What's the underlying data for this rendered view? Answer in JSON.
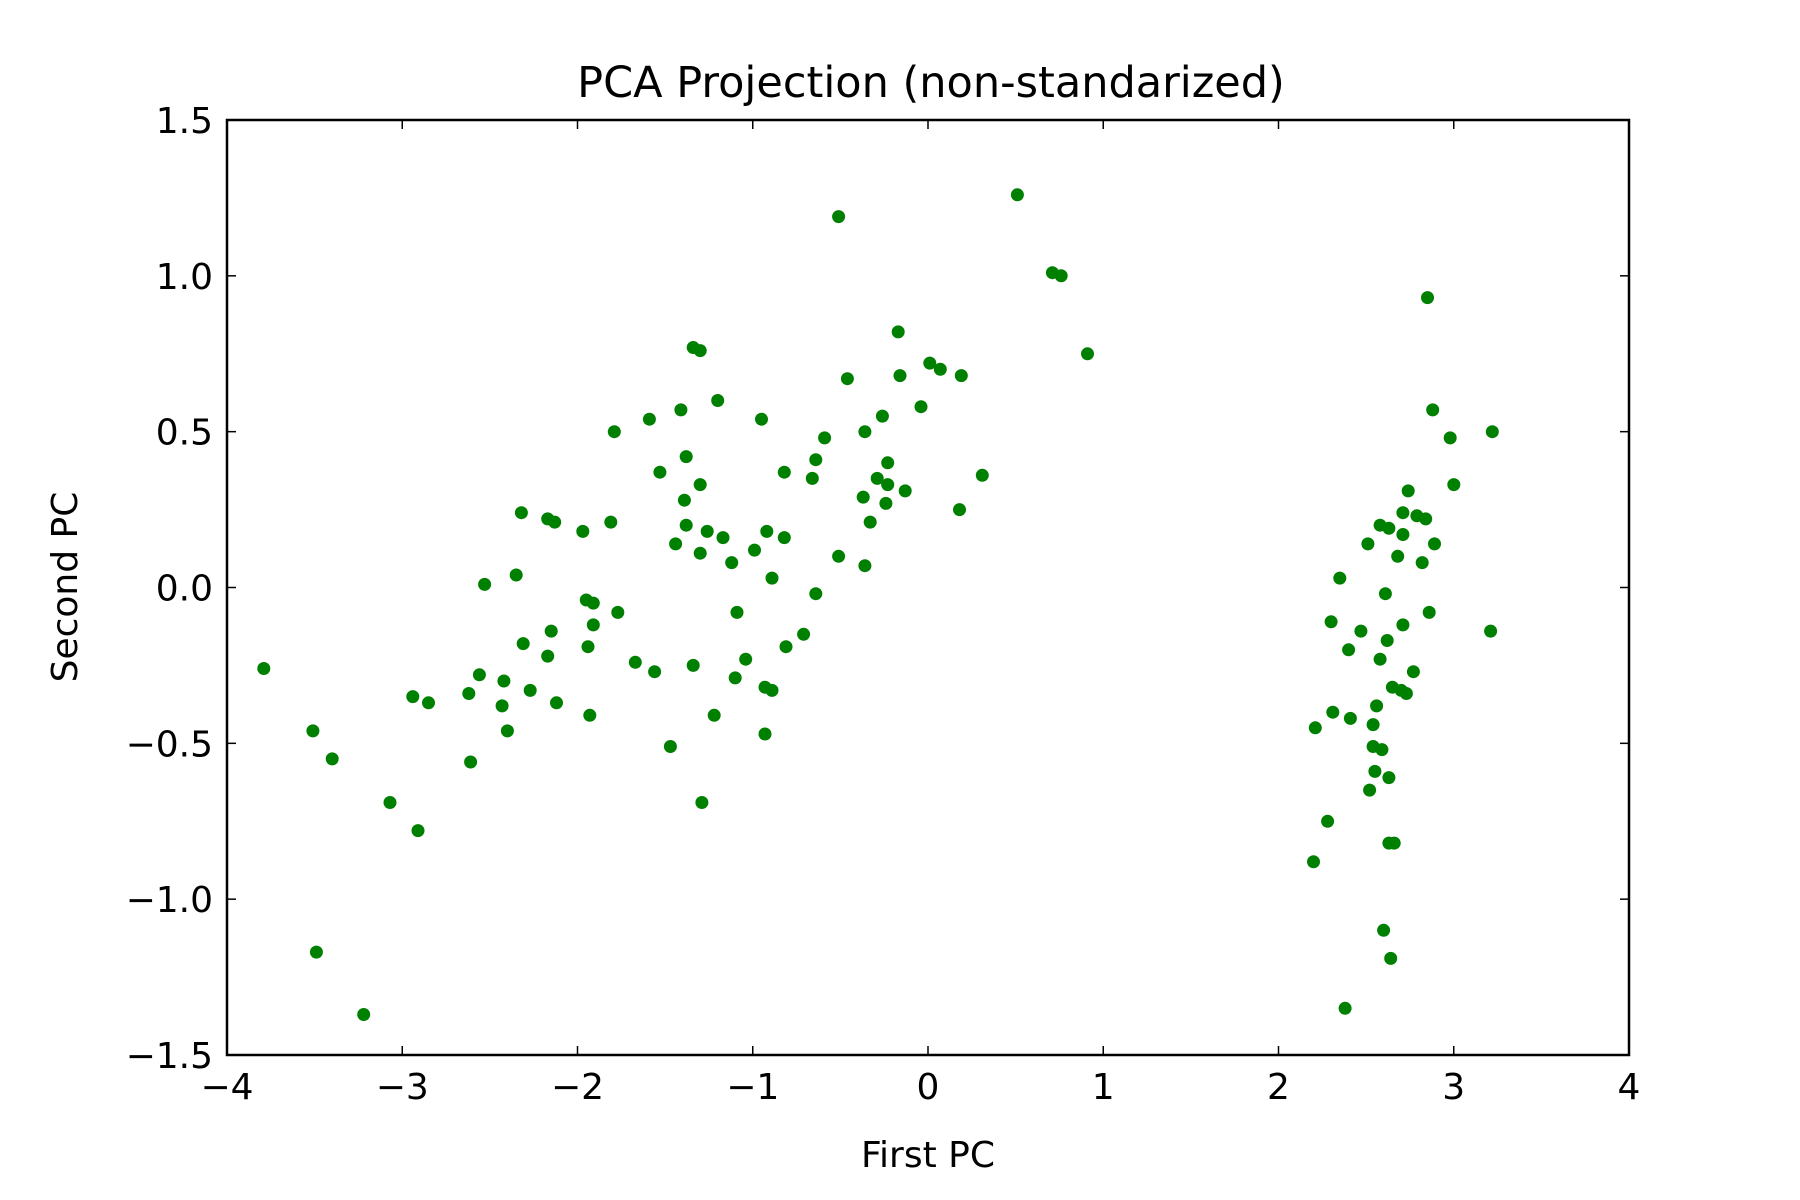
{
  "chart_data": {
    "type": "scatter",
    "title": "PCA Projection (non-standarized)",
    "xlabel": "First PC",
    "ylabel": "Second PC",
    "xlim": [
      -4,
      4
    ],
    "ylim": [
      -1.5,
      1.5
    ],
    "grid": false,
    "x_ticks": [
      -4,
      -3,
      -2,
      -1,
      0,
      1,
      2,
      3,
      4
    ],
    "x_tick_labels": [
      "−4",
      "−3",
      "−2",
      "−1",
      "0",
      "1",
      "2",
      "3",
      "4"
    ],
    "y_ticks": [
      -1.5,
      -1.0,
      -0.5,
      0.0,
      0.5,
      1.0,
      1.5
    ],
    "y_tick_labels": [
      "−1.5",
      "−1.0",
      "−0.5",
      "0.0",
      "0.5",
      "1.0",
      "1.5"
    ],
    "marker_color": "#008000",
    "series": [
      {
        "points": [
          [
            -3.79,
            -0.26
          ],
          [
            -3.51,
            -0.46
          ],
          [
            -3.49,
            -1.17
          ],
          [
            -3.4,
            -0.55
          ],
          [
            -3.22,
            -1.37
          ],
          [
            -3.07,
            -0.69
          ],
          [
            -2.94,
            -0.35
          ],
          [
            -2.91,
            -0.78
          ],
          [
            -2.85,
            -0.37
          ],
          [
            -2.62,
            -0.34
          ],
          [
            -2.61,
            -0.56
          ],
          [
            -2.56,
            -0.28
          ],
          [
            -2.53,
            0.01
          ],
          [
            -2.43,
            -0.38
          ],
          [
            -2.42,
            -0.3
          ],
          [
            -2.4,
            -0.46
          ],
          [
            -2.35,
            0.04
          ],
          [
            -2.32,
            0.24
          ],
          [
            -2.31,
            -0.18
          ],
          [
            -2.27,
            -0.33
          ],
          [
            -2.17,
            0.22
          ],
          [
            -2.17,
            -0.22
          ],
          [
            -2.15,
            -0.14
          ],
          [
            -2.13,
            0.21
          ],
          [
            -2.12,
            -0.37
          ],
          [
            -1.97,
            0.18
          ],
          [
            -1.95,
            -0.04
          ],
          [
            -1.94,
            -0.19
          ],
          [
            -1.93,
            -0.41
          ],
          [
            -1.91,
            -0.05
          ],
          [
            -1.91,
            -0.12
          ],
          [
            -1.81,
            0.21
          ],
          [
            -1.79,
            0.5
          ],
          [
            -1.77,
            -0.08
          ],
          [
            -1.67,
            -0.24
          ],
          [
            -1.59,
            0.54
          ],
          [
            -1.56,
            -0.27
          ],
          [
            -1.53,
            0.37
          ],
          [
            -1.47,
            -0.51
          ],
          [
            -1.44,
            0.14
          ],
          [
            -1.41,
            0.57
          ],
          [
            -1.39,
            0.28
          ],
          [
            -1.38,
            0.42
          ],
          [
            -1.38,
            0.2
          ],
          [
            -1.34,
            0.77
          ],
          [
            -1.34,
            -0.25
          ],
          [
            -1.3,
            0.76
          ],
          [
            -1.3,
            0.33
          ],
          [
            -1.3,
            0.11
          ],
          [
            -1.29,
            -0.69
          ],
          [
            -1.26,
            0.18
          ],
          [
            -1.22,
            -0.41
          ],
          [
            -1.2,
            0.6
          ],
          [
            -1.17,
            0.16
          ],
          [
            -1.12,
            0.08
          ],
          [
            -1.1,
            -0.29
          ],
          [
            -1.09,
            -0.08
          ],
          [
            -1.04,
            -0.23
          ],
          [
            -0.99,
            0.12
          ],
          [
            -0.95,
            0.54
          ],
          [
            -0.93,
            -0.32
          ],
          [
            -0.93,
            -0.47
          ],
          [
            -0.92,
            0.18
          ],
          [
            -0.89,
            0.03
          ],
          [
            -0.89,
            -0.33
          ],
          [
            -0.82,
            0.16
          ],
          [
            -0.82,
            0.37
          ],
          [
            -0.81,
            -0.19
          ],
          [
            -0.71,
            -0.15
          ],
          [
            -0.66,
            0.35
          ],
          [
            -0.64,
            0.41
          ],
          [
            -0.64,
            -0.02
          ],
          [
            -0.59,
            0.48
          ],
          [
            -0.51,
            1.19
          ],
          [
            -0.51,
            0.1
          ],
          [
            -0.46,
            0.67
          ],
          [
            -0.37,
            0.29
          ],
          [
            -0.36,
            0.5
          ],
          [
            -0.36,
            0.07
          ],
          [
            -0.33,
            0.21
          ],
          [
            -0.29,
            0.35
          ],
          [
            -0.26,
            0.55
          ],
          [
            -0.24,
            0.27
          ],
          [
            -0.23,
            0.4
          ],
          [
            -0.23,
            0.33
          ],
          [
            -0.17,
            0.82
          ],
          [
            -0.16,
            0.68
          ],
          [
            -0.13,
            0.31
          ],
          [
            -0.04,
            0.58
          ],
          [
            0.01,
            0.72
          ],
          [
            0.07,
            0.7
          ],
          [
            0.18,
            0.25
          ],
          [
            0.19,
            0.68
          ],
          [
            0.31,
            0.36
          ],
          [
            0.51,
            1.26
          ],
          [
            0.71,
            1.01
          ],
          [
            0.76,
            1.0
          ],
          [
            0.91,
            0.75
          ],
          [
            2.2,
            -0.88
          ],
          [
            2.21,
            -0.45
          ],
          [
            2.28,
            -0.75
          ],
          [
            2.3,
            -0.11
          ],
          [
            2.31,
            -0.4
          ],
          [
            2.35,
            0.03
          ],
          [
            2.38,
            -1.35
          ],
          [
            2.4,
            -0.2
          ],
          [
            2.41,
            -0.42
          ],
          [
            2.47,
            -0.14
          ],
          [
            2.51,
            0.14
          ],
          [
            2.52,
            -0.65
          ],
          [
            2.54,
            -0.51
          ],
          [
            2.54,
            -0.44
          ],
          [
            2.55,
            -0.59
          ],
          [
            2.56,
            -0.38
          ],
          [
            2.58,
            0.2
          ],
          [
            2.58,
            -0.23
          ],
          [
            2.59,
            -0.52
          ],
          [
            2.6,
            -1.1
          ],
          [
            2.61,
            -0.02
          ],
          [
            2.62,
            -0.17
          ],
          [
            2.63,
            0.19
          ],
          [
            2.63,
            -0.61
          ],
          [
            2.63,
            -0.82
          ],
          [
            2.64,
            -1.19
          ],
          [
            2.65,
            -0.32
          ],
          [
            2.66,
            -0.82
          ],
          [
            2.68,
            0.1
          ],
          [
            2.7,
            -0.33
          ],
          [
            2.71,
            0.17
          ],
          [
            2.71,
            -0.12
          ],
          [
            2.71,
            0.24
          ],
          [
            2.73,
            -0.34
          ],
          [
            2.74,
            0.31
          ],
          [
            2.77,
            -0.27
          ],
          [
            2.79,
            0.23
          ],
          [
            2.82,
            0.08
          ],
          [
            2.84,
            0.22
          ],
          [
            2.85,
            0.93
          ],
          [
            2.86,
            -0.08
          ],
          [
            2.88,
            0.57
          ],
          [
            2.89,
            0.14
          ],
          [
            2.98,
            0.48
          ],
          [
            3.0,
            0.33
          ],
          [
            3.21,
            -0.14
          ],
          [
            3.22,
            0.5
          ]
        ]
      }
    ]
  }
}
